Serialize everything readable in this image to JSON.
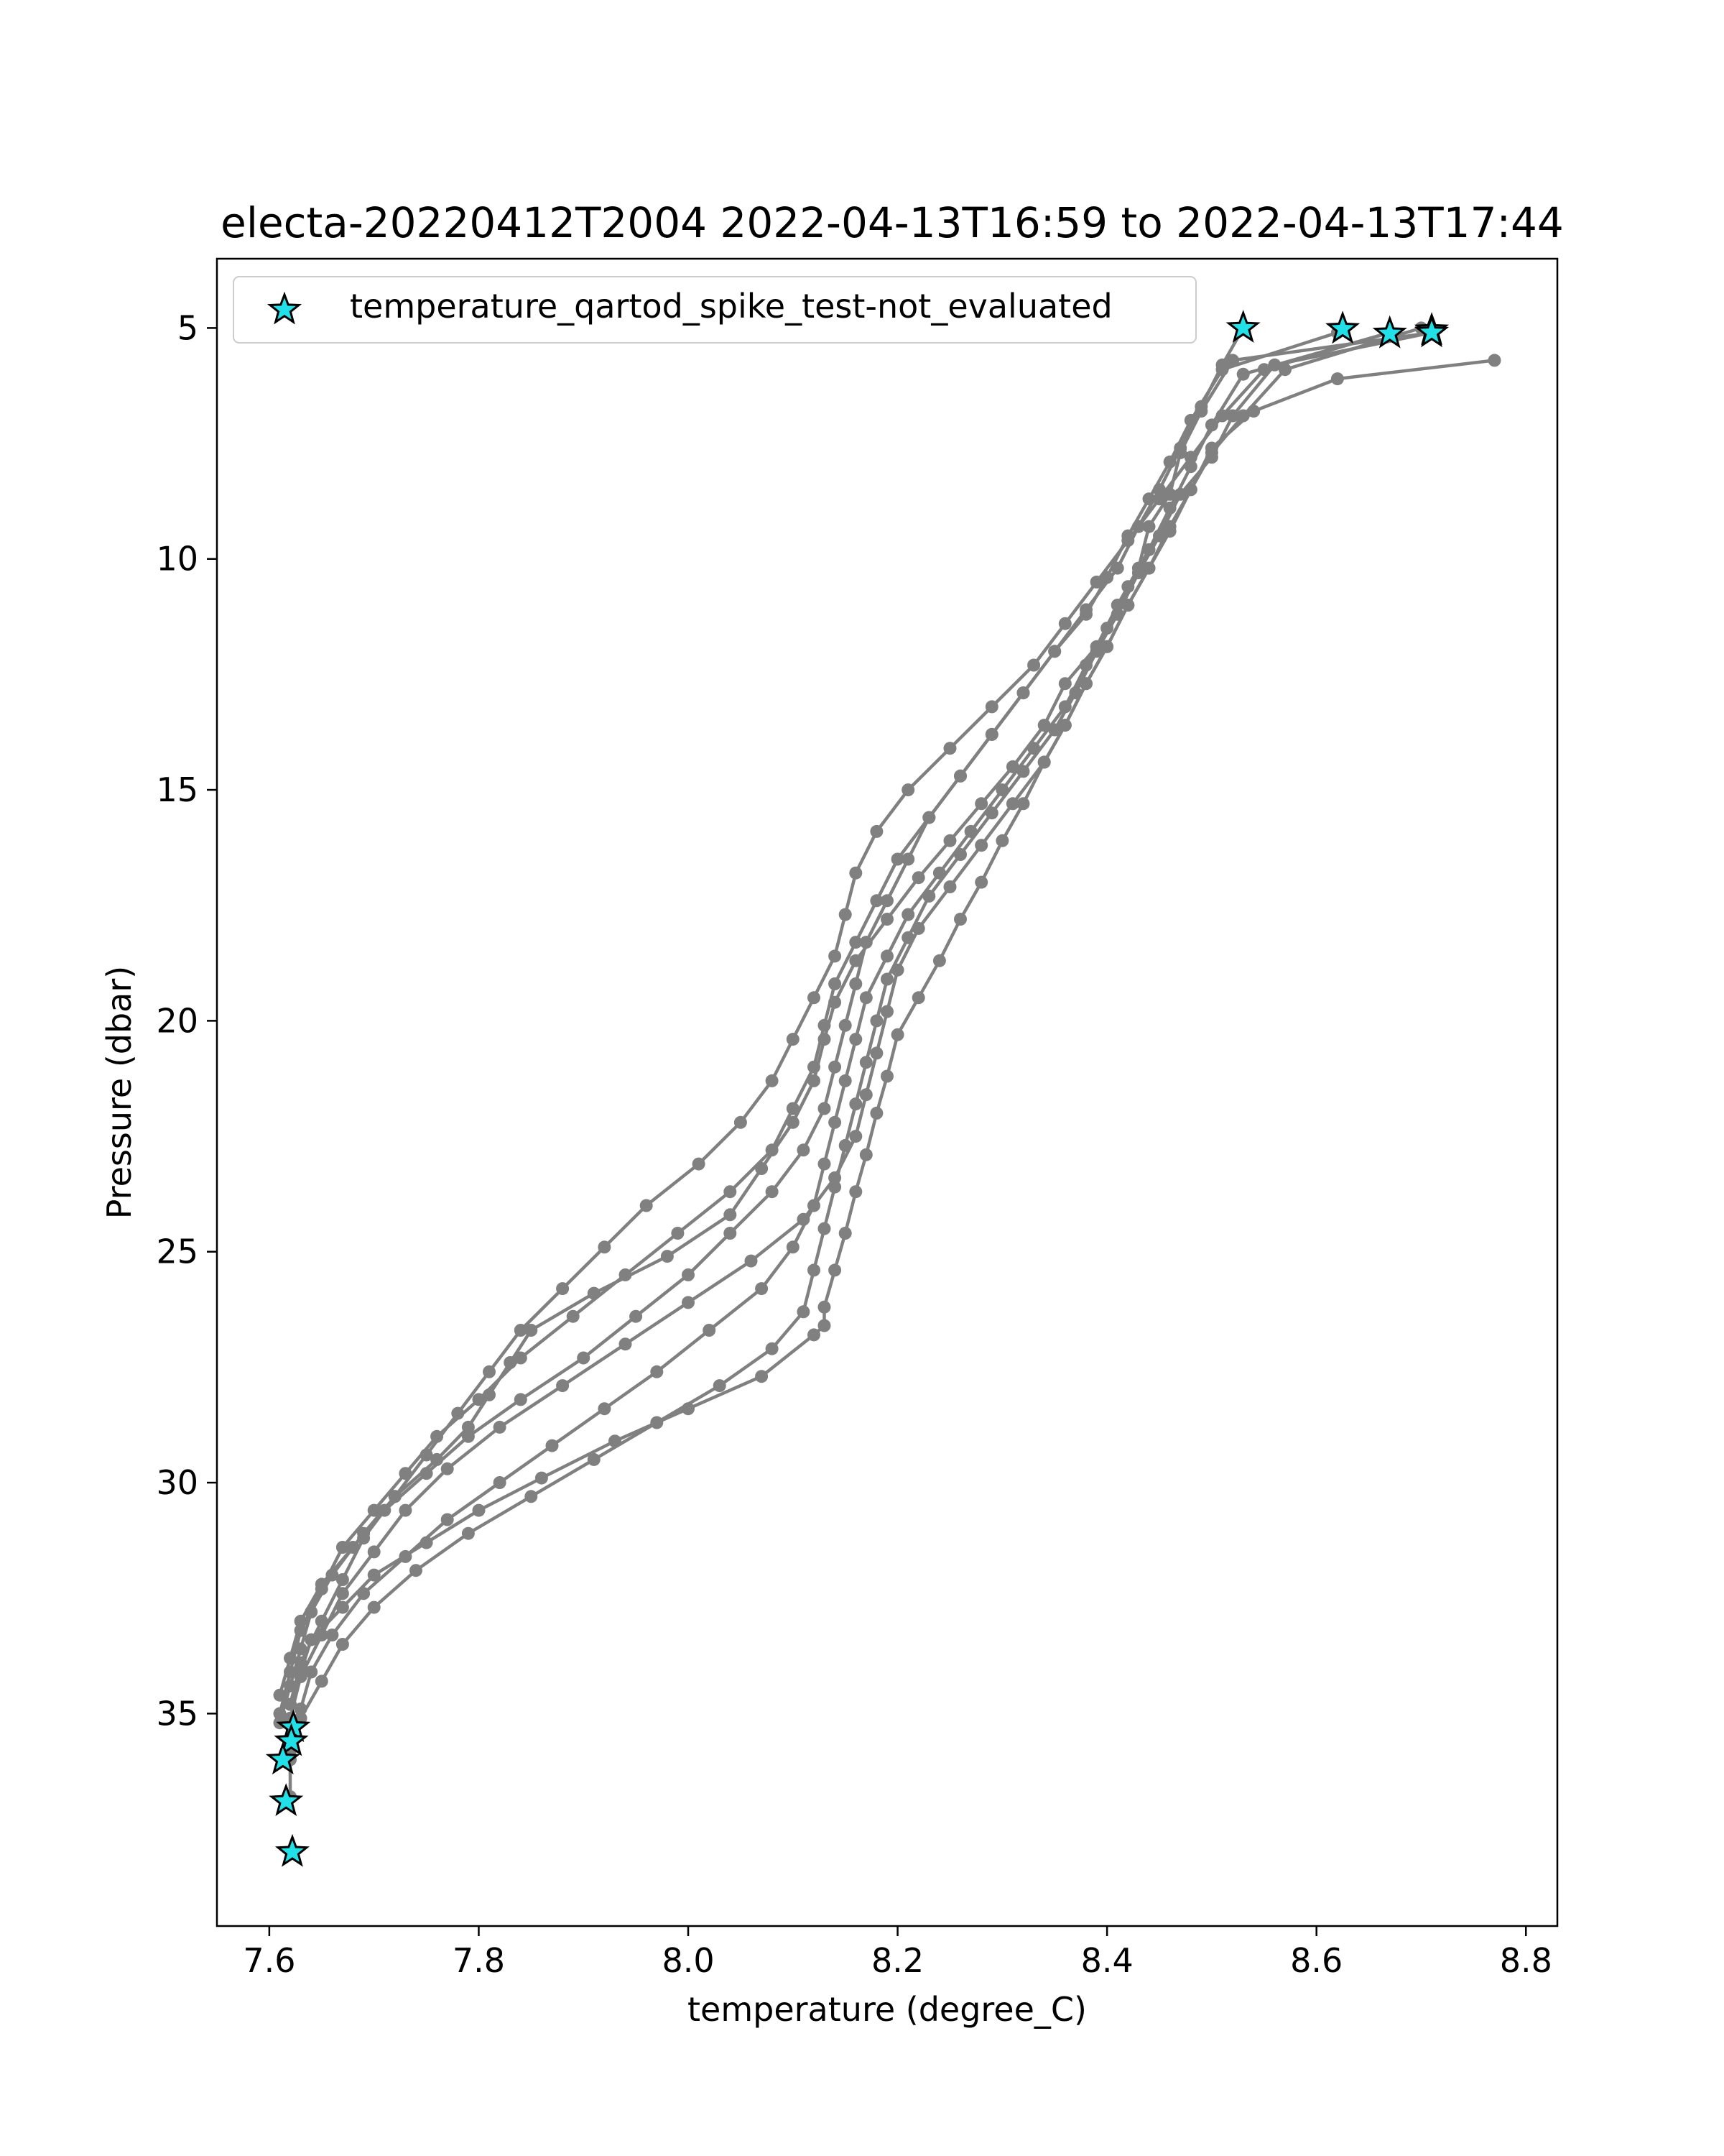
{
  "chart_data": {
    "type": "line",
    "title": "electa-20220412T2004 2022-04-13T16:59 to 2022-04-13T17:44",
    "xlabel": "temperature (degree_C)",
    "ylabel": "Pressure (dbar)",
    "xlim": [
      7.55,
      8.83
    ],
    "ylim": [
      39.6,
      3.5
    ],
    "y_inverted": true,
    "xticks": [
      7.6,
      7.8,
      8.0,
      8.2,
      8.4,
      8.6,
      8.8
    ],
    "xtick_labels": [
      "7.6",
      "7.8",
      "8.0",
      "8.2",
      "8.4",
      "8.6",
      "8.8"
    ],
    "yticks": [
      5,
      10,
      15,
      20,
      25,
      30,
      35
    ],
    "ytick_labels": [
      "5",
      "10",
      "15",
      "20",
      "25",
      "30",
      "35"
    ],
    "grid": false,
    "legend": {
      "position": "upper-left",
      "entries": [
        "temperature_qartod_spike_test-not_evaluated"
      ]
    },
    "colors": {
      "profile": "#808080",
      "flag_fill": "#22e0e8",
      "flag_edge": "#000000"
    },
    "series": [
      {
        "x": [
          8.71,
          8.52,
          8.49,
          8.47,
          8.46,
          8.44,
          8.43,
          8.41,
          8.39,
          8.36,
          8.34,
          8.31,
          8.28,
          8.25,
          8.22,
          8.19,
          8.16,
          8.14,
          8.13,
          8.12,
          8.1,
          8.07,
          8.04,
          7.98,
          7.91,
          7.85,
          7.83,
          7.81,
          7.79,
          7.76,
          7.72,
          7.69,
          7.66,
          7.64,
          7.63,
          7.62,
          7.61
        ],
        "y": [
          5.1,
          5.7,
          6.8,
          7.7,
          8.6,
          9.3,
          10.2,
          11.0,
          11.9,
          12.7,
          13.6,
          14.5,
          15.3,
          16.1,
          16.9,
          17.8,
          18.7,
          19.6,
          20.4,
          21.3,
          22.2,
          23.2,
          24.2,
          25.1,
          25.9,
          26.7,
          27.4,
          28.1,
          28.8,
          29.5,
          30.3,
          31.1,
          32.0,
          32.8,
          33.6,
          34.4,
          35.2
        ]
      },
      {
        "x": [
          8.62,
          8.51,
          8.48,
          8.46,
          8.44,
          8.42,
          8.4,
          8.38,
          8.35,
          8.32,
          8.29,
          8.26,
          8.23,
          8.2,
          8.18,
          8.16,
          8.14,
          8.13,
          8.12,
          8.1,
          8.08,
          8.04,
          7.99,
          7.94,
          7.89,
          7.84,
          7.8,
          7.76,
          7.73,
          7.7,
          7.67,
          7.65,
          7.63,
          7.62,
          7.61
        ],
        "y": [
          5.1,
          5.9,
          7.0,
          7.9,
          8.7,
          9.5,
          10.4,
          11.2,
          12.0,
          12.9,
          13.8,
          14.7,
          15.6,
          16.5,
          17.4,
          18.3,
          19.2,
          20.1,
          21.0,
          21.9,
          22.8,
          23.7,
          24.6,
          25.5,
          26.4,
          27.3,
          28.2,
          29.0,
          29.8,
          30.6,
          31.4,
          32.3,
          33.2,
          34.1,
          35.0
        ]
      },
      {
        "x": [
          8.67,
          8.53,
          8.5,
          8.48,
          8.46,
          8.44,
          8.42,
          8.4,
          8.38,
          8.36,
          8.33,
          8.3,
          8.27,
          8.24,
          8.21,
          8.19,
          8.17,
          8.16,
          8.15,
          8.14,
          8.13,
          8.12,
          8.1,
          8.07,
          8.02,
          7.97,
          7.92,
          7.87,
          7.82,
          7.77,
          7.73,
          7.69,
          7.66,
          7.64,
          7.63,
          7.62
        ],
        "y": [
          5.1,
          6.0,
          7.1,
          8.0,
          8.9,
          9.8,
          10.6,
          11.5,
          12.3,
          13.2,
          14.1,
          15.0,
          15.9,
          16.8,
          17.7,
          18.6,
          19.5,
          20.4,
          21.3,
          22.2,
          23.1,
          24.0,
          24.9,
          25.8,
          26.7,
          27.6,
          28.4,
          29.2,
          30.0,
          30.8,
          31.6,
          32.4,
          33.3,
          34.1,
          34.9,
          35.6
        ]
      },
      {
        "x": [
          8.71,
          8.56,
          8.52,
          8.5,
          8.47,
          8.45,
          8.43,
          8.41,
          8.39,
          8.37,
          8.35,
          8.32,
          8.29,
          8.26,
          8.23,
          8.21,
          8.19,
          8.18,
          8.17,
          8.16,
          8.15,
          8.14,
          8.13,
          8.12,
          8.11,
          8.08,
          8.03,
          7.97,
          7.91,
          7.85,
          7.79,
          7.74,
          7.7,
          7.67,
          7.65,
          7.63,
          7.62
        ],
        "y": [
          5.1,
          5.8,
          6.9,
          7.8,
          8.6,
          9.5,
          10.3,
          11.2,
          12.0,
          12.9,
          13.7,
          14.6,
          15.5,
          16.4,
          17.3,
          18.2,
          19.1,
          20.0,
          20.9,
          21.8,
          22.7,
          23.6,
          24.5,
          25.4,
          26.3,
          27.1,
          27.9,
          28.7,
          29.5,
          30.3,
          31.1,
          31.9,
          32.7,
          33.5,
          34.3,
          35.1,
          35.8
        ]
      },
      {
        "x": [
          8.53,
          8.51,
          8.49,
          8.47,
          8.45,
          8.43,
          8.41,
          8.38,
          8.35,
          8.32,
          8.29,
          8.26,
          8.23,
          8.21,
          8.19,
          8.17,
          8.16,
          8.15,
          8.14,
          8.13,
          8.11,
          8.08,
          8.04,
          8.0,
          7.95,
          7.9,
          7.84,
          7.79,
          7.75,
          7.71,
          7.68,
          7.65,
          7.63,
          7.62,
          7.61
        ],
        "y": [
          5.0,
          5.8,
          6.7,
          7.6,
          8.5,
          9.3,
          10.2,
          11.1,
          12.0,
          12.9,
          13.8,
          14.7,
          15.6,
          16.5,
          17.4,
          18.3,
          19.2,
          20.1,
          21.0,
          21.9,
          22.8,
          23.7,
          24.6,
          25.5,
          26.4,
          27.3,
          28.2,
          29.0,
          29.8,
          30.6,
          31.4,
          32.2,
          33.0,
          33.8,
          34.6
        ]
      },
      {
        "x": [
          8.77,
          8.62,
          8.54,
          8.5,
          8.48,
          8.46,
          8.44,
          8.42,
          8.4,
          8.38,
          8.36,
          8.34,
          8.32,
          8.3,
          8.28,
          8.26,
          8.24,
          8.22,
          8.2,
          8.19,
          8.18,
          8.17,
          8.16,
          8.15,
          8.14,
          8.13,
          8.13,
          8.12,
          8.07,
          8.0,
          7.93,
          7.86,
          7.8,
          7.75,
          7.7,
          7.67,
          7.64,
          7.63,
          7.62
        ],
        "y": [
          5.7,
          6.1,
          6.8,
          7.6,
          8.5,
          9.3,
          10.2,
          11.0,
          11.9,
          12.7,
          13.6,
          14.4,
          15.3,
          16.1,
          17.0,
          17.8,
          18.7,
          19.5,
          20.3,
          21.2,
          22.0,
          22.9,
          23.7,
          24.6,
          25.4,
          26.2,
          26.6,
          26.8,
          27.7,
          28.4,
          29.1,
          29.9,
          30.6,
          31.3,
          32.0,
          32.7,
          33.4,
          34.1,
          34.8
        ]
      },
      {
        "x": [
          8.67,
          8.55,
          8.51,
          8.48,
          8.45,
          8.42,
          8.39,
          8.36,
          8.33,
          8.29,
          8.25,
          8.21,
          8.18,
          8.16,
          8.15,
          8.14,
          8.12,
          8.1,
          8.08,
          8.05,
          8.01,
          7.96,
          7.92,
          7.88,
          7.84,
          7.81,
          7.78,
          7.75,
          7.72,
          7.69,
          7.67,
          7.65,
          7.63,
          7.62
        ],
        "y": [
          5.1,
          5.9,
          6.9,
          7.8,
          8.7,
          9.6,
          10.5,
          11.4,
          12.3,
          13.2,
          14.1,
          15.0,
          15.9,
          16.8,
          17.7,
          18.6,
          19.5,
          20.4,
          21.3,
          22.2,
          23.1,
          24.0,
          24.9,
          25.8,
          26.7,
          27.6,
          28.5,
          29.4,
          30.3,
          31.2,
          32.1,
          33.0,
          33.9,
          34.8
        ]
      },
      {
        "x": [
          8.7,
          8.57,
          8.53,
          8.5,
          8.48,
          8.46,
          8.44,
          8.42,
          8.4,
          8.38,
          8.36,
          8.34,
          8.31,
          8.28,
          8.25,
          8.22,
          8.2,
          8.19,
          8.18,
          8.17,
          8.16,
          8.14,
          8.11,
          8.06,
          8.0,
          7.94,
          7.88,
          7.82,
          7.77,
          7.73,
          7.7,
          7.67,
          7.65,
          7.63,
          7.62,
          7.62,
          7.62
        ],
        "y": [
          5.0,
          5.9,
          6.9,
          7.7,
          8.5,
          9.4,
          10.2,
          11.0,
          11.9,
          12.7,
          13.6,
          14.4,
          15.3,
          16.2,
          17.1,
          18.0,
          18.9,
          19.8,
          20.7,
          21.6,
          22.5,
          23.4,
          24.3,
          25.2,
          26.1,
          27.0,
          27.9,
          28.8,
          29.7,
          30.6,
          31.5,
          32.4,
          33.3,
          34.2,
          35.1,
          36.0,
          36.8
        ]
      }
    ],
    "flagged_points": {
      "x": [
        8.53,
        8.625,
        8.67,
        8.71,
        8.71,
        7.623,
        7.621,
        7.613,
        7.616,
        7.622
      ],
      "y": [
        5.0,
        5.02,
        5.12,
        5.05,
        5.1,
        35.3,
        35.6,
        36.0,
        36.9,
        38.0
      ]
    }
  }
}
